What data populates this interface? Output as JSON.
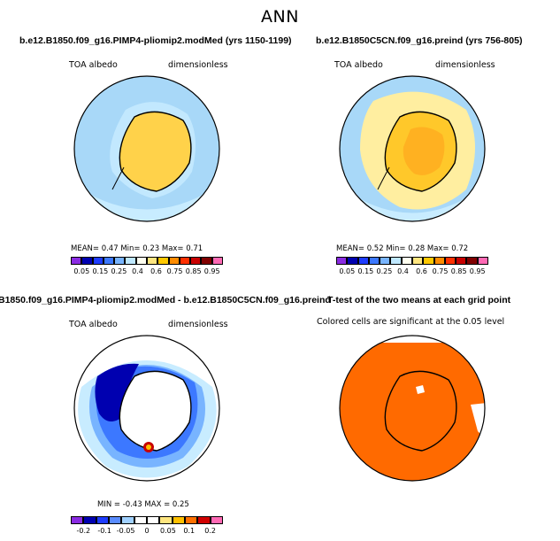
{
  "main_title": "ANN",
  "colors": {
    "seq": [
      "#8a2be2",
      "#0000b0",
      "#1e3cff",
      "#3c78ff",
      "#78b4ff",
      "#bfe8ff",
      "#fffff0",
      "#ffe680",
      "#ffc800",
      "#ff8c00",
      "#ff3000",
      "#c80000",
      "#800000",
      "#ff69b4"
    ],
    "diff": [
      "#8a2be2",
      "#0000b0",
      "#1e3cff",
      "#5a8cff",
      "#a0d0ff",
      "#ffffff",
      "#ffffff",
      "#ffe680",
      "#ffc000",
      "#ff7000",
      "#d00000",
      "#ff69b4"
    ],
    "ttest": "#ff6a00"
  },
  "chart_data": [
    {
      "type": "heatmap",
      "panel": "top-left",
      "title": "b.e12.B1850.f09_g16.PIMP4-pliomip2.modMed (yrs 1150-1199)",
      "variable": "TOA albedo",
      "units": "dimensionless",
      "stats_text": "MEAN=    0.47   Min=     0.23   Max=     0.71",
      "colorbar_ticks": [
        "0.05",
        "0.15",
        "0.25",
        "0.4",
        "0.6",
        "0.75",
        "0.85",
        "0.95"
      ],
      "mean": 0.47,
      "min": 0.23,
      "max": 0.71
    },
    {
      "type": "heatmap",
      "panel": "top-right",
      "title": "b.e12.B1850C5CN.f09_g16.preind (yrs 756-805)",
      "variable": "TOA albedo",
      "units": "dimensionless",
      "stats_text": "MEAN=    0.52   Min=     0.28   Max=     0.72",
      "colorbar_ticks": [
        "0.05",
        "0.15",
        "0.25",
        "0.4",
        "0.6",
        "0.75",
        "0.85",
        "0.95"
      ],
      "mean": 0.52,
      "min": 0.28,
      "max": 0.72
    },
    {
      "type": "heatmap",
      "panel": "bottom-left",
      "title": "B1850.f09_g16.PIMP4-pliomip2.modMed - b.e12.B1850C5CN.f09_g16.preind",
      "variable": "TOA albedo",
      "units": "dimensionless",
      "stats_text": "MIN = -0.43  MAX =    0.25",
      "colorbar_ticks": [
        "-0.2",
        "-0.1",
        "-0.05",
        "0",
        "0.05",
        "0.1",
        "0.2"
      ],
      "min": -0.43,
      "max": 0.25
    },
    {
      "type": "heatmap",
      "panel": "bottom-right",
      "title": "T-test of the two means at each grid point",
      "subtitle": "Colored cells are significant at the 0.05 level"
    }
  ]
}
